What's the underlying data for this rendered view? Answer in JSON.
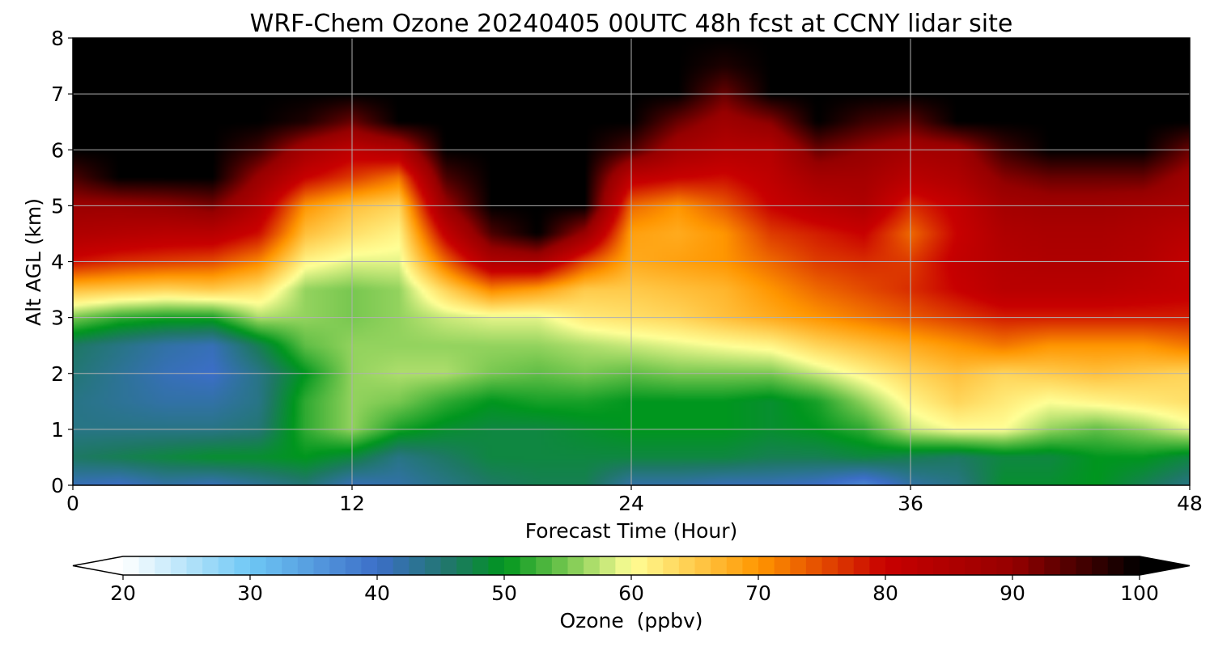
{
  "chart_data": {
    "type": "heatmap",
    "title": "WRF-Chem Ozone  20240405 00UTC 48h fcst at CCNY lidar site",
    "xlabel": "Forecast Time (Hour)",
    "ylabel": "Alt AGL (km)",
    "xlim": [
      0,
      48
    ],
    "ylim": [
      0,
      8
    ],
    "x_ticks": [
      "0",
      "12",
      "24",
      "36",
      "48"
    ],
    "y_ticks": [
      "0",
      "1",
      "2",
      "3",
      "4",
      "5",
      "6",
      "7",
      "8"
    ],
    "grid": true,
    "colorbar": {
      "label": "Ozone  (ppbv)",
      "min": 20,
      "max": 100,
      "ticks": [
        "20",
        "30",
        "40",
        "50",
        "60",
        "70",
        "80",
        "90",
        "100"
      ],
      "extend": "both",
      "stops": [
        {
          "value": 20,
          "color": "#ffffff"
        },
        {
          "value": 30,
          "color": "#6ec8f5"
        },
        {
          "value": 40,
          "color": "#3c6ec8"
        },
        {
          "value": 46,
          "color": "#1e7864"
        },
        {
          "value": 50,
          "color": "#00961e"
        },
        {
          "value": 55,
          "color": "#78c850"
        },
        {
          "value": 60,
          "color": "#ffff96"
        },
        {
          "value": 70,
          "color": "#ff9600"
        },
        {
          "value": 80,
          "color": "#c80000"
        },
        {
          "value": 90,
          "color": "#960000"
        },
        {
          "value": 100,
          "color": "#000000"
        }
      ]
    },
    "x": [
      0,
      2,
      4,
      6,
      8,
      10,
      12,
      14,
      16,
      18,
      20,
      22,
      24,
      26,
      28,
      30,
      32,
      34,
      36,
      38,
      40,
      42,
      44,
      46,
      48
    ],
    "y": [
      0,
      0.5,
      1,
      1.5,
      2,
      2.5,
      3,
      3.5,
      4,
      4.5,
      5,
      5.5,
      6,
      6.5,
      7,
      7.5,
      8
    ],
    "z": [
      [
        41,
        40,
        42,
        41,
        43,
        45,
        41,
        42,
        44,
        46,
        47,
        47,
        42,
        42,
        41,
        41,
        40,
        37,
        42,
        44,
        49,
        49,
        50,
        47,
        44
      ],
      [
        46,
        47,
        48,
        49,
        49,
        50,
        48,
        44,
        46,
        48,
        48,
        48,
        48,
        48,
        48,
        47,
        47,
        48,
        47,
        46,
        48,
        48,
        50,
        50,
        48
      ],
      [
        44,
        44,
        44,
        44,
        45,
        52,
        56,
        51,
        49,
        48,
        48,
        49,
        50,
        50,
        50,
        49,
        50,
        52,
        58,
        60,
        60,
        56,
        54,
        56,
        59
      ],
      [
        44,
        43,
        42,
        42,
        44,
        52,
        56,
        55,
        52,
        50,
        51,
        51,
        50,
        50,
        50,
        49,
        51,
        56,
        61,
        64,
        62,
        60,
        61,
        62,
        63
      ],
      [
        45,
        43,
        41,
        40,
        44,
        50,
        56,
        57,
        57,
        55,
        54,
        55,
        54,
        55,
        55,
        55,
        58,
        61,
        64,
        66,
        64,
        65,
        66,
        65,
        64
      ],
      [
        46,
        44,
        42,
        41,
        47,
        54,
        56,
        56,
        56,
        56,
        56,
        57,
        58,
        59,
        60,
        61,
        64,
        66,
        68,
        70,
        72,
        70,
        70,
        70,
        72
      ],
      [
        55,
        52,
        51,
        51,
        57,
        56,
        55,
        56,
        58,
        59,
        59,
        62,
        63,
        64,
        66,
        68,
        70,
        72,
        74,
        76,
        78,
        78,
        78,
        78,
        78
      ],
      [
        66,
        65,
        64,
        65,
        63,
        56,
        55,
        56,
        64,
        71,
        69,
        65,
        65,
        66,
        67,
        70,
        73,
        75,
        77,
        80,
        83,
        83,
        83,
        82,
        81
      ],
      [
        79,
        77,
        76,
        75,
        71,
        61,
        59,
        59,
        73,
        85,
        86,
        75,
        68,
        69,
        70,
        73,
        76,
        77,
        76,
        81,
        84,
        85,
        85,
        84,
        81
      ],
      [
        85,
        84,
        83,
        83,
        79,
        66,
        63,
        61,
        81,
        95,
        100,
        89,
        69,
        68,
        70,
        76,
        78,
        80,
        73,
        80,
        85,
        86,
        86,
        85,
        83
      ],
      [
        89,
        89,
        90,
        92,
        84,
        70,
        66,
        64,
        89,
        100,
        100,
        100,
        73,
        70,
        74,
        80,
        83,
        85,
        77,
        81,
        87,
        88,
        88,
        87,
        86
      ],
      [
        95,
        100,
        100,
        100,
        89,
        80,
        76,
        72,
        95,
        100,
        100,
        100,
        82,
        80,
        79,
        82,
        87,
        87,
        83,
        85,
        91,
        93,
        93,
        93,
        88
      ],
      [
        100,
        100,
        100,
        100,
        96,
        87,
        82,
        85,
        100,
        100,
        100,
        100,
        95,
        87,
        84,
        84,
        93,
        90,
        87,
        88,
        96,
        100,
        100,
        100,
        93
      ],
      [
        100,
        100,
        100,
        100,
        100,
        98,
        93,
        100,
        100,
        100,
        100,
        100,
        100,
        93,
        88,
        91,
        100,
        96,
        94,
        100,
        100,
        100,
        100,
        100,
        100
      ],
      [
        100,
        100,
        100,
        100,
        100,
        100,
        100,
        100,
        100,
        100,
        100,
        100,
        100,
        100,
        93,
        100,
        100,
        100,
        100,
        100,
        100,
        100,
        100,
        100,
        100
      ],
      [
        100,
        100,
        100,
        100,
        100,
        100,
        100,
        100,
        100,
        100,
        100,
        100,
        100,
        100,
        98,
        100,
        100,
        100,
        100,
        100,
        100,
        100,
        100,
        100,
        100
      ],
      [
        100,
        100,
        100,
        100,
        100,
        100,
        100,
        100,
        100,
        100,
        100,
        100,
        100,
        100,
        100,
        100,
        100,
        100,
        100,
        100,
        100,
        100,
        100,
        100,
        100
      ]
    ]
  }
}
